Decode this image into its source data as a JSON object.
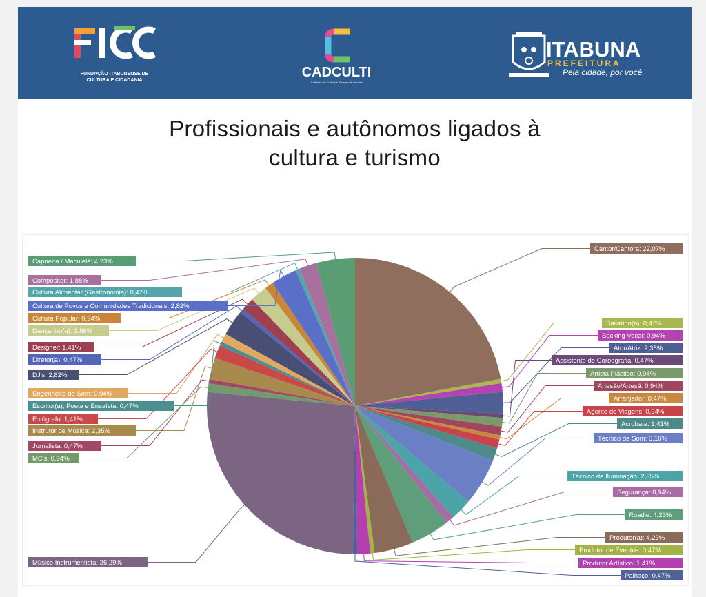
{
  "header": {
    "ficc": {
      "logo": "FICC",
      "subtitle_1": "FUNDAÇÃO ITABUNENSE DE",
      "subtitle_2": "CULTURA E CIDADANIA"
    },
    "cadculti": {
      "logo": "CADCULTI",
      "tagline": "Cadastro de Cultura e Turismo de Itabuna"
    },
    "itabuna": {
      "logo": "ITABUNA",
      "subtitle": "PREFEITURA",
      "slogan": "Pela cidade, por você."
    }
  },
  "title_line1": "Profissionais e autônomos ligados à",
  "title_line2": "cultura e turismo",
  "chart_data": {
    "type": "pie",
    "title": "Profissionais e autônomos ligados à cultura e turismo",
    "unit": "%",
    "start": "top",
    "direction": "clockwise",
    "legend": "labels around the pie with leader lines",
    "slices": [
      {
        "label": "Cantor/Cantora: 22,07%",
        "value": 22.07,
        "color": "#8f6e5e",
        "side": "right"
      },
      {
        "label": "Bailarino(a): 0,47%",
        "value": 0.47,
        "color": "#a9b84d",
        "side": "right"
      },
      {
        "label": "Backing Vocal: 0,94%",
        "value": 0.94,
        "color": "#b343b0",
        "side": "right"
      },
      {
        "label": "Ator/Atriz: 2,35%",
        "value": 2.35,
        "color": "#4f5f95",
        "side": "right"
      },
      {
        "label": "Assistente de Coreografia: 0,47%",
        "value": 0.47,
        "color": "#6b4a78",
        "side": "right"
      },
      {
        "label": "Artista Plástico: 0,94%",
        "value": 0.94,
        "color": "#7b9a6b",
        "side": "right"
      },
      {
        "label": "Artesão/Artesã: 0,94%",
        "value": 0.94,
        "color": "#a0465e",
        "side": "right"
      },
      {
        "label": "Arranjador: 0,47%",
        "value": 0.47,
        "color": "#c98a3e",
        "side": "right"
      },
      {
        "label": "Agente de Viagens: 0,94%",
        "value": 0.94,
        "color": "#c9444a",
        "side": "right"
      },
      {
        "label": "Acrobata: 1,41%",
        "value": 1.41,
        "color": "#4e8a8a",
        "side": "right"
      },
      {
        "label": "Técnico de Som: 5,16%",
        "value": 5.16,
        "color": "#6b7fc4",
        "side": "right"
      },
      {
        "label": "Técnico de Iluminação: 2,35%",
        "value": 2.35,
        "color": "#4ca4a8",
        "side": "right"
      },
      {
        "label": "Segurança: 0,94%",
        "value": 0.94,
        "color": "#a76ca4",
        "side": "right"
      },
      {
        "label": "Roadie: 4,23%",
        "value": 4.23,
        "color": "#5f9e7a",
        "side": "right"
      },
      {
        "label": "Produtor(a): 4,23%",
        "value": 4.23,
        "color": "#8a6a58",
        "side": "right"
      },
      {
        "label": "Produtor de Eventos: 0,47%",
        "value": 0.47,
        "color": "#a5b344",
        "side": "right"
      },
      {
        "label": "Produtor Artístico: 1,41%",
        "value": 1.41,
        "color": "#b33fb0",
        "side": "right"
      },
      {
        "label": "Palhaço: 0,47%",
        "value": 0.47,
        "color": "#4f6196",
        "side": "right"
      },
      {
        "label": "Músico Instrumentista: 26,29%",
        "value": 26.29,
        "color": "#7b6582",
        "side": "left"
      },
      {
        "label": "MC's: 0,94%",
        "value": 0.94,
        "color": "#739a6a",
        "side": "left"
      },
      {
        "label": "Jornalista: 0,47%",
        "value": 0.47,
        "color": "#a04866",
        "side": "left"
      },
      {
        "label": "Instrutor de Música: 2,35%",
        "value": 2.35,
        "color": "#a88a4e",
        "side": "left"
      },
      {
        "label": "Fotógrafo: 1,41%",
        "value": 1.41,
        "color": "#c94848",
        "side": "left"
      },
      {
        "label": "Escritor(a), Poeta e Ensaísta: 0,47%",
        "value": 0.47,
        "color": "#4b8f90",
        "side": "left"
      },
      {
        "label": "Engenheiro de Som: 0,94%",
        "value": 0.94,
        "color": "#e0a860",
        "side": "left"
      },
      {
        "label": "DJ's: 2,82%",
        "value": 2.82,
        "color": "#494e74",
        "side": "left"
      },
      {
        "label": "Diretor(a): 0,47%",
        "value": 0.47,
        "color": "#5466b8",
        "side": "left"
      },
      {
        "label": "Designer: 1,41%",
        "value": 1.41,
        "color": "#9e4050",
        "side": "left"
      },
      {
        "label": "Dançarino(a): 1,88%",
        "value": 1.88,
        "color": "#c6cc8e",
        "side": "left"
      },
      {
        "label": "Cultura Popular: 0,94%",
        "value": 0.94,
        "color": "#c98636",
        "side": "left"
      },
      {
        "label": "Cultura de Povos e Comunidades Tradicionais: 2,82%",
        "value": 2.82,
        "color": "#5a6fc8",
        "side": "left"
      },
      {
        "label": "Cultura Alimentar (Gastronomia): 0,47%",
        "value": 0.47,
        "color": "#55a6ac",
        "side": "left"
      },
      {
        "label": "Compositor: 1,88%",
        "value": 1.88,
        "color": "#a8709e",
        "side": "left"
      },
      {
        "label": "Capoeira / Maculelê: 4,23%",
        "value": 4.23,
        "color": "#5a9c74",
        "side": "left"
      }
    ]
  }
}
